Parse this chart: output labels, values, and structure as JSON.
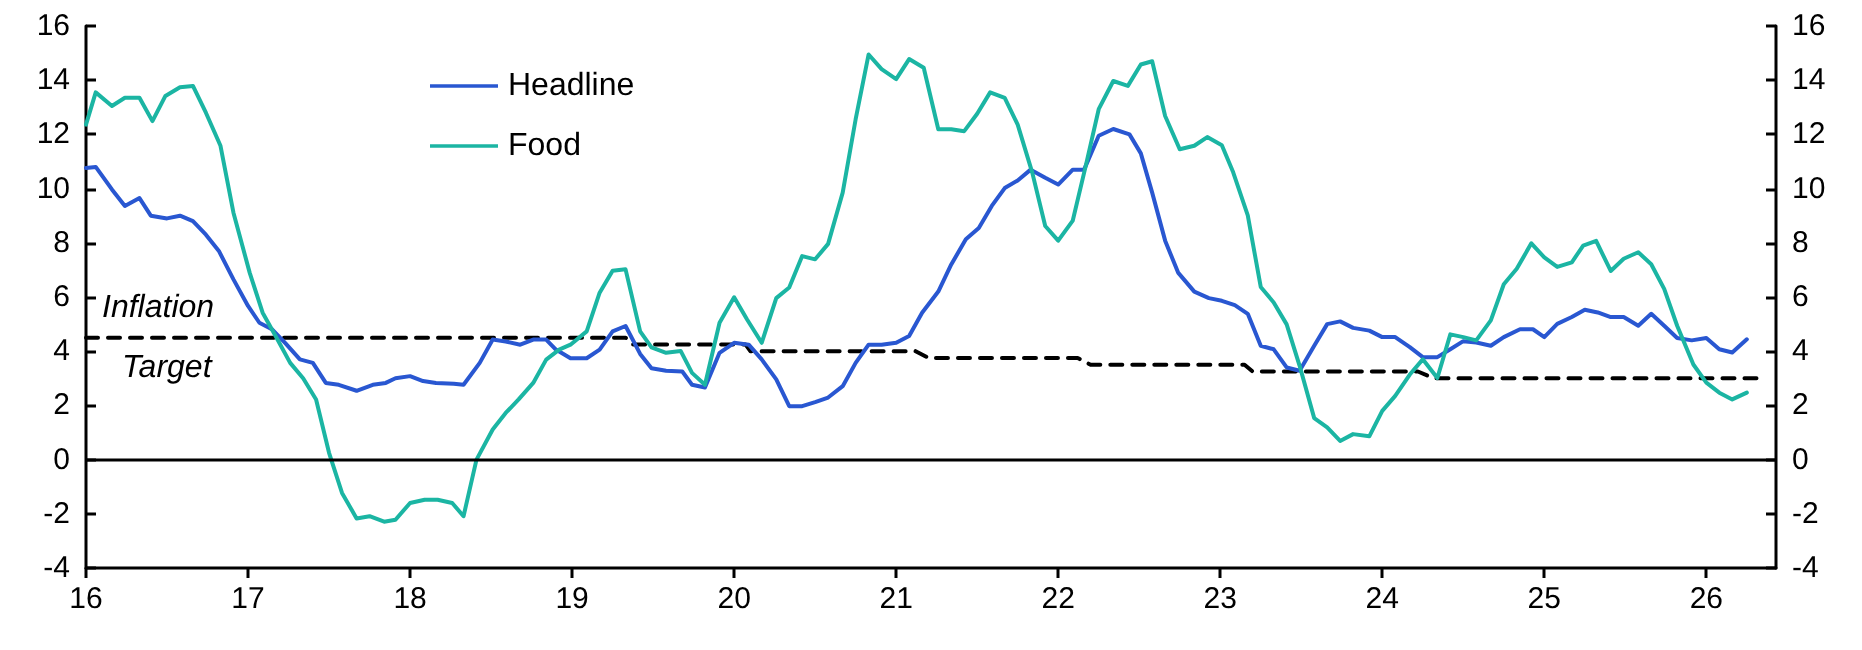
{
  "chart_data": {
    "type": "line",
    "xlim": [
      16,
      26.43
    ],
    "xticks": [
      16,
      17,
      18,
      19,
      20,
      21,
      22,
      23,
      24,
      25,
      26
    ],
    "ylim": [
      -4,
      16
    ],
    "yticks": [
      -4,
      -2,
      0,
      2,
      4,
      6,
      8,
      10,
      12,
      14,
      16
    ],
    "y2lim": [
      -4,
      16
    ],
    "y2ticks": [
      -4,
      -2,
      0,
      2,
      4,
      6,
      8,
      10,
      12,
      14,
      16
    ],
    "grid": false,
    "legend": "top left",
    "marker": "none",
    "series": [
      {
        "name": "Headline",
        "color": "#2957d1",
        "x": [
          16.0,
          16.06,
          16.16,
          16.24,
          16.33,
          16.4,
          16.5,
          16.58,
          16.66,
          16.74,
          16.82,
          16.91,
          17.0,
          17.07,
          17.15,
          17.23,
          17.32,
          17.4,
          17.48,
          17.56,
          17.67,
          17.77,
          17.85,
          17.91,
          18.0,
          18.08,
          18.16,
          18.27,
          18.33,
          18.43,
          18.51,
          18.59,
          18.68,
          18.76,
          18.84,
          18.9,
          18.99,
          19.09,
          19.17,
          19.25,
          19.33,
          19.42,
          19.49,
          19.58,
          19.68,
          19.74,
          19.82,
          19.91,
          20.0,
          20.09,
          20.17,
          20.26,
          20.34,
          20.42,
          20.5,
          20.58,
          20.67,
          20.75,
          20.83,
          20.91,
          21.0,
          21.08,
          21.16,
          21.26,
          21.34,
          21.43,
          21.51,
          21.59,
          21.67,
          21.75,
          21.83,
          21.92,
          22.0,
          22.09,
          22.16,
          22.25,
          22.34,
          22.44,
          22.51,
          22.58,
          22.66,
          22.74,
          22.84,
          22.93,
          23.01,
          23.09,
          23.17,
          23.25,
          23.33,
          23.41,
          23.49,
          23.58,
          23.66,
          23.74,
          23.82,
          23.92,
          24.0,
          24.08,
          24.17,
          24.25,
          24.34,
          24.42,
          24.5,
          24.58,
          24.67,
          24.75,
          24.85,
          24.93,
          25.0,
          25.08,
          25.17,
          25.25,
          25.33,
          25.41,
          25.49,
          25.58,
          25.66,
          25.74,
          25.82,
          25.91,
          26.0,
          26.08,
          26.16,
          26.25
        ],
        "values": [
          10.76,
          10.8,
          9.97,
          9.36,
          9.65,
          9.0,
          8.9,
          9.0,
          8.8,
          8.3,
          7.7,
          6.65,
          5.67,
          5.05,
          4.8,
          4.3,
          3.7,
          3.57,
          2.83,
          2.76,
          2.54,
          2.76,
          2.83,
          3.0,
          3.08,
          2.9,
          2.83,
          2.8,
          2.76,
          3.57,
          4.43,
          4.36,
          4.24,
          4.43,
          4.43,
          4.06,
          3.74,
          3.74,
          4.06,
          4.73,
          4.93,
          3.9,
          3.37,
          3.28,
          3.25,
          2.76,
          2.66,
          3.94,
          4.31,
          4.24,
          3.7,
          2.96,
          1.97,
          1.97,
          2.12,
          2.29,
          2.71,
          3.57,
          4.24,
          4.24,
          4.31,
          4.56,
          5.42,
          6.2,
          7.2,
          8.13,
          8.55,
          9.36,
          10.02,
          10.3,
          10.7,
          10.4,
          10.15,
          10.7,
          10.7,
          11.95,
          12.2,
          12.0,
          11.3,
          9.85,
          8.08,
          6.9,
          6.2,
          5.96,
          5.86,
          5.7,
          5.38,
          4.2,
          4.07,
          3.4,
          3.28,
          4.2,
          5.0,
          5.1,
          4.86,
          4.76,
          4.52,
          4.52,
          4.15,
          3.78,
          3.78,
          4.07,
          4.37,
          4.32,
          4.2,
          4.52,
          4.81,
          4.81,
          4.52,
          5.01,
          5.26,
          5.53,
          5.43,
          5.26,
          5.26,
          4.94,
          5.38,
          4.94,
          4.49,
          4.4,
          4.49,
          4.07,
          3.95,
          4.44
        ]
      },
      {
        "name": "Food",
        "color": "#1bb5a3",
        "x": [
          16.0,
          16.06,
          16.16,
          16.24,
          16.33,
          16.41,
          16.49,
          16.58,
          16.66,
          16.74,
          16.83,
          16.91,
          17.01,
          17.09,
          17.17,
          17.26,
          17.34,
          17.42,
          17.5,
          17.58,
          17.67,
          17.75,
          17.84,
          17.91,
          18.0,
          18.09,
          18.17,
          18.26,
          18.33,
          18.41,
          18.51,
          18.59,
          18.67,
          18.76,
          18.84,
          18.92,
          18.99,
          19.09,
          19.17,
          19.25,
          19.33,
          19.42,
          19.49,
          19.58,
          19.67,
          19.74,
          19.82,
          19.91,
          20.0,
          20.08,
          20.17,
          20.26,
          20.34,
          20.42,
          20.5,
          20.58,
          20.67,
          20.75,
          20.83,
          20.91,
          21.0,
          21.08,
          21.17,
          21.26,
          21.34,
          21.42,
          21.5,
          21.58,
          21.67,
          21.75,
          21.84,
          21.92,
          22.0,
          22.09,
          22.17,
          22.25,
          22.34,
          22.43,
          22.51,
          22.58,
          22.66,
          22.75,
          22.84,
          22.92,
          23.01,
          23.08,
          23.17,
          23.25,
          23.33,
          23.41,
          23.49,
          23.58,
          23.66,
          23.74,
          23.82,
          23.92,
          24.0,
          24.08,
          24.17,
          24.25,
          24.34,
          24.42,
          24.5,
          24.58,
          24.67,
          24.75,
          24.83,
          24.92,
          25.0,
          25.08,
          25.17,
          25.24,
          25.32,
          25.41,
          25.49,
          25.58,
          25.66,
          25.74,
          25.82,
          25.92,
          26.0,
          26.08,
          26.16,
          26.25
        ],
        "values": [
          12.36,
          13.55,
          13.05,
          13.35,
          13.35,
          12.49,
          13.42,
          13.74,
          13.79,
          12.8,
          11.58,
          9.11,
          6.9,
          5.42,
          4.56,
          3.57,
          3.0,
          2.22,
          0.25,
          -1.23,
          -2.17,
          -2.09,
          -2.29,
          -2.22,
          -1.6,
          -1.48,
          -1.48,
          -1.6,
          -2.09,
          0.0,
          1.11,
          1.72,
          2.22,
          2.83,
          3.69,
          4.06,
          4.24,
          4.73,
          6.16,
          6.97,
          7.02,
          4.73,
          4.14,
          3.94,
          4.01,
          3.2,
          2.76,
          5.05,
          5.99,
          5.17,
          4.31,
          5.96,
          6.35,
          7.51,
          7.39,
          7.96,
          9.85,
          12.56,
          14.95,
          14.41,
          14.04,
          14.78,
          14.46,
          12.19,
          12.19,
          12.12,
          12.76,
          13.55,
          13.35,
          12.36,
          10.59,
          8.62,
          8.08,
          8.82,
          10.84,
          12.93,
          13.97,
          13.79,
          14.58,
          14.7,
          12.68,
          11.45,
          11.58,
          11.9,
          11.6,
          10.6,
          9.01,
          6.37,
          5.8,
          4.99,
          3.46,
          1.53,
          1.19,
          0.69,
          0.94,
          0.86,
          1.8,
          2.35,
          3.14,
          3.7,
          3.01,
          4.62,
          4.52,
          4.4,
          5.14,
          6.47,
          7.04,
          7.98,
          7.46,
          7.11,
          7.28,
          7.9,
          8.07,
          6.96,
          7.41,
          7.65,
          7.21,
          6.3,
          4.94,
          3.51,
          2.84,
          2.47,
          2.22,
          2.47
        ]
      },
      {
        "color": "#000000",
        "line_style": "dashed",
        "x": [
          16.0,
          19.33,
          19.37,
          20.07,
          20.1,
          21.12,
          21.2,
          22.12,
          22.2,
          23.15,
          23.2,
          24.22,
          24.32,
          26.35
        ],
        "values": [
          4.5,
          4.5,
          4.25,
          4.25,
          4.0,
          4.0,
          3.75,
          3.75,
          3.5,
          3.5,
          3.25,
          3.25,
          3.0,
          3.0
        ]
      }
    ],
    "ref_lines": [
      {
        "axis": "y",
        "value": 0,
        "color": "#000000"
      }
    ],
    "annotations": [
      "Inflation",
      "Target"
    ]
  }
}
